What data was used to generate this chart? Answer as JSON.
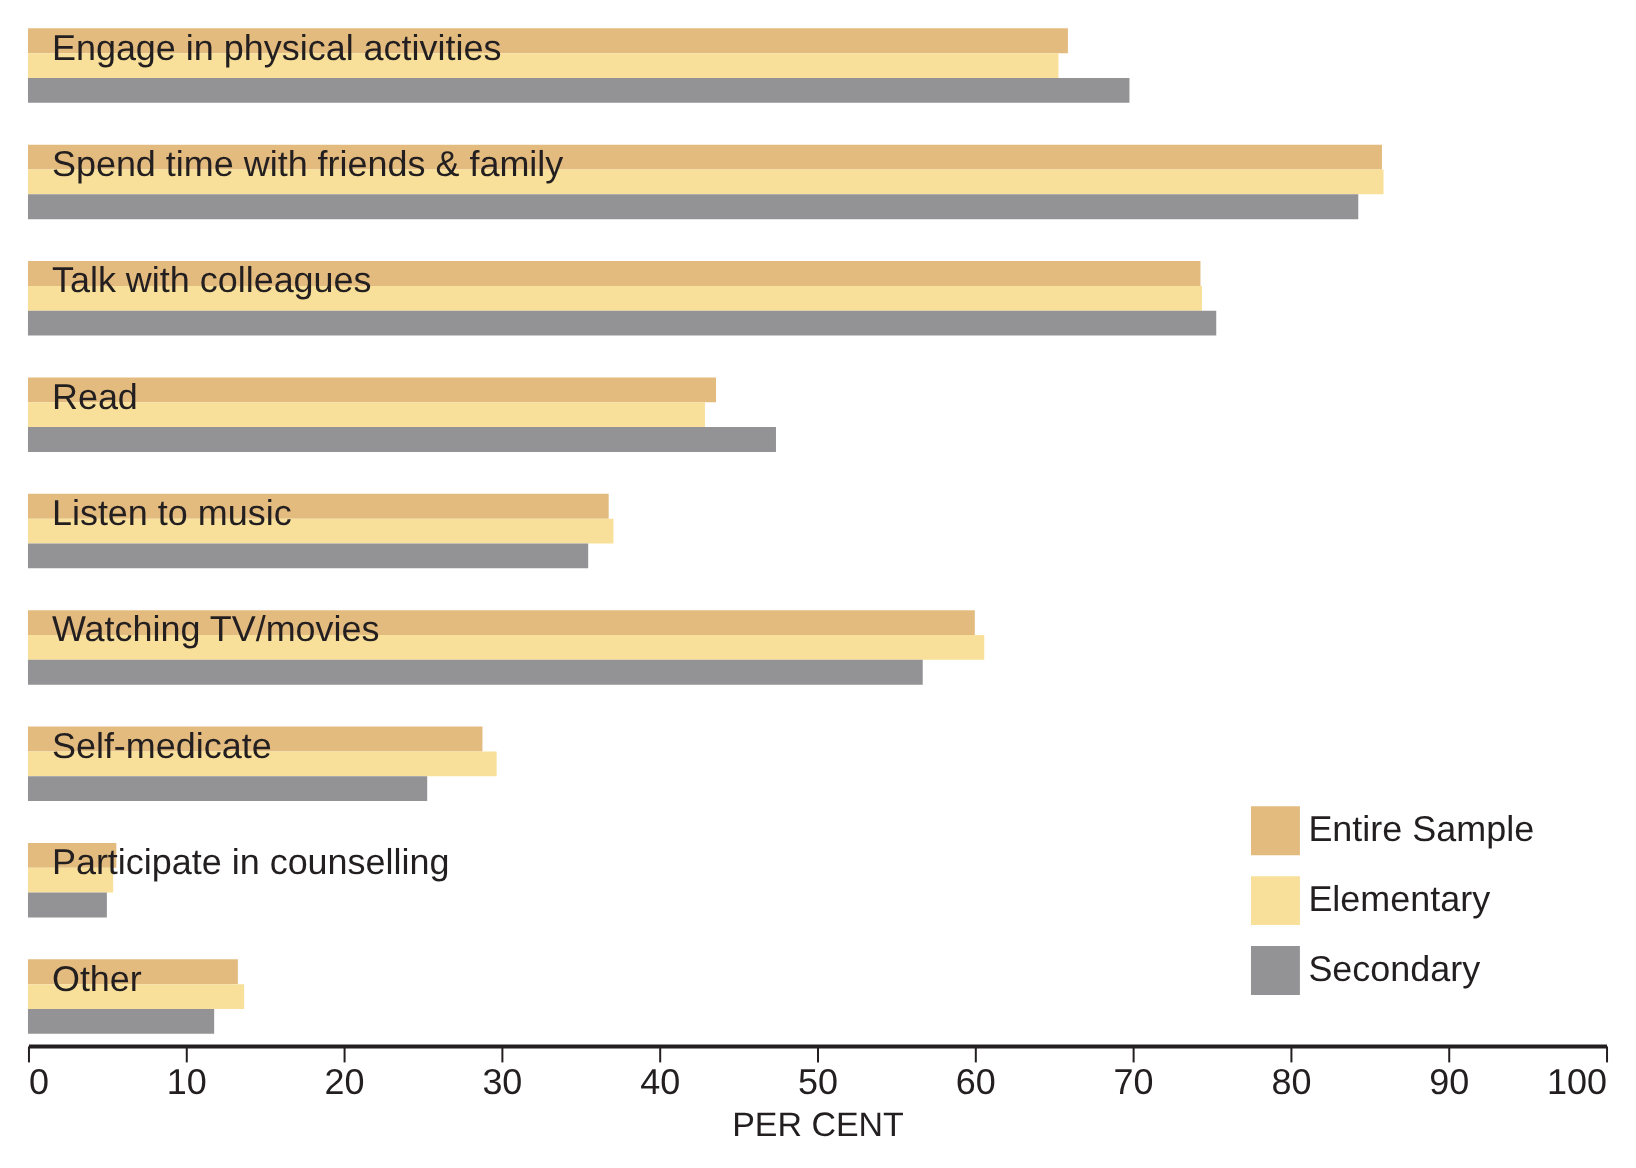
{
  "chart_data": {
    "type": "bar",
    "orientation": "horizontal",
    "xlabel": "PER CENT",
    "categories": [
      "Engage in physical activities",
      "Spend time with friends & family",
      "Talk with colleagues",
      "Read",
      "Listen to music",
      "Watching TV/movies",
      "Self-medicate",
      "Participate in counselling",
      "Other"
    ],
    "series": [
      {
        "name": "Entire Sample",
        "color": "#e3bb7e",
        "values": [
          65.9,
          85.8,
          74.3,
          43.6,
          36.8,
          60.0,
          28.8,
          5.6,
          13.3
        ]
      },
      {
        "name": "Elementary",
        "color": "#f8e09a",
        "values": [
          65.3,
          85.9,
          74.4,
          42.9,
          37.1,
          60.6,
          29.7,
          5.4,
          13.7
        ]
      },
      {
        "name": "Secondary",
        "color": "#939396",
        "values": [
          69.8,
          84.3,
          75.3,
          47.4,
          35.5,
          56.7,
          25.3,
          5.0,
          11.8
        ]
      }
    ],
    "xlim": [
      0,
      100
    ],
    "xticks": [
      0,
      10,
      20,
      30,
      40,
      50,
      60,
      70,
      80,
      90,
      100
    ],
    "grid": false,
    "legend": "bottom right",
    "tick_labels": "x"
  }
}
